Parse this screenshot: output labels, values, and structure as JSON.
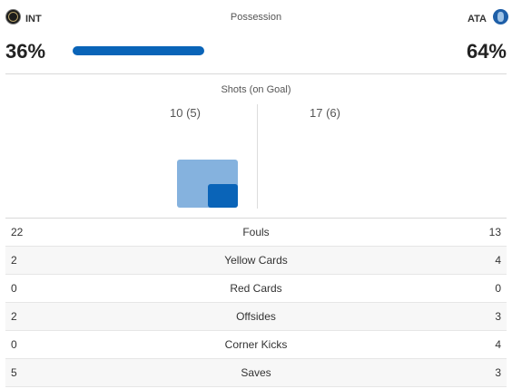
{
  "home": {
    "abbr": "INT",
    "possession": "36%",
    "possession_value": 36,
    "shots": "10 (5)",
    "shots_total": 10,
    "shots_on_goal": 5
  },
  "away": {
    "abbr": "ATA",
    "possession": "64%",
    "possession_value": 64,
    "shots": "17 (6)",
    "shots_total": 17,
    "shots_on_goal": 6
  },
  "labels": {
    "possession": "Possession",
    "shots": "Shots (on Goal)"
  },
  "stats": [
    {
      "label": "Fouls",
      "home": "22",
      "away": "13"
    },
    {
      "label": "Yellow Cards",
      "home": "2",
      "away": "4"
    },
    {
      "label": "Red Cards",
      "home": "0",
      "away": "0"
    },
    {
      "label": "Offsides",
      "home": "2",
      "away": "3"
    },
    {
      "label": "Corner Kicks",
      "home": "0",
      "away": "4"
    },
    {
      "label": "Saves",
      "home": "5",
      "away": "3"
    }
  ],
  "colors": {
    "home_bar": "#0a64b8",
    "shots_total": "#85b2de",
    "shots_on_goal": "#0a64b8"
  }
}
